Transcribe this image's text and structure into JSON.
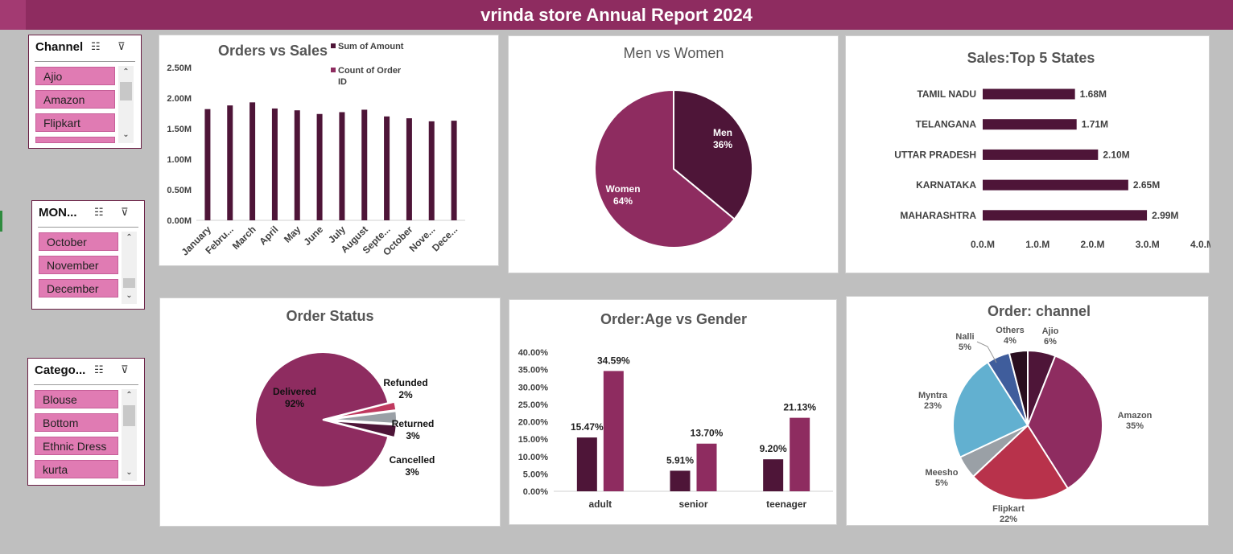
{
  "header": {
    "title": "vrinda store Annual Report 2024"
  },
  "slicers": [
    {
      "title": "Channel",
      "items": [
        "Ajio",
        "Amazon",
        "Flipkart"
      ]
    },
    {
      "title": "MON...",
      "items": [
        "October",
        "November",
        "December"
      ]
    },
    {
      "title": "Catego...",
      "items": [
        "Blouse",
        "Bottom",
        "Ethnic Dress",
        "kurta"
      ]
    }
  ],
  "chart_data": [
    {
      "id": "orders-vs-sales",
      "type": "bar",
      "title": "Orders vs Sales",
      "categories": [
        "January",
        "Febru...",
        "March",
        "April",
        "May",
        "June",
        "July",
        "August",
        "Septe...",
        "October",
        "Nove...",
        "Dece..."
      ],
      "series": [
        {
          "name": "Sum of Amount",
          "values": [
            1.82,
            1.88,
            1.93,
            1.83,
            1.8,
            1.74,
            1.77,
            1.81,
            1.7,
            1.67,
            1.62,
            1.63
          ]
        },
        {
          "name": "Count of Order ID",
          "values": [
            0,
            0,
            0,
            0,
            0,
            0,
            0,
            0,
            0,
            0,
            0,
            0
          ]
        }
      ],
      "yticks": [
        "0.00M",
        "0.50M",
        "1.00M",
        "1.50M",
        "2.00M",
        "2.50M"
      ],
      "ylim": [
        0,
        2.5
      ],
      "colors": [
        "#4e1538",
        "#8e2c60"
      ]
    },
    {
      "id": "men-vs-women",
      "type": "pie",
      "title": "Men vs Women",
      "labels": [
        "Men",
        "Women"
      ],
      "values": [
        36,
        64
      ],
      "pct_labels": [
        "36%",
        "64%"
      ],
      "colors": [
        "#4e1538",
        "#8e2c60"
      ]
    },
    {
      "id": "top-5-states",
      "type": "bar",
      "orientation": "horizontal",
      "title": "Sales:Top 5 States",
      "categories": [
        "TAMIL NADU",
        "TELANGANA",
        "UTTAR PRADESH",
        "KARNATAKA",
        "MAHARASHTRA"
      ],
      "values": [
        1.68,
        1.71,
        2.1,
        2.65,
        2.99
      ],
      "value_labels": [
        "1.68M",
        "1.71M",
        "2.10M",
        "2.65M",
        "2.99M"
      ],
      "xticks": [
        "0.0.M",
        "1.0.M",
        "2.0.M",
        "3.0.M",
        "4.0.M"
      ],
      "xlim": [
        0,
        4
      ],
      "color": "#4e1538"
    },
    {
      "id": "order-status",
      "type": "pie",
      "title": "Order Status",
      "labels": [
        "Delivered",
        "Refunded",
        "Returned",
        "Cancelled"
      ],
      "values": [
        92,
        2,
        3,
        3
      ],
      "pct_labels": [
        "92%",
        "2%",
        "3%",
        "3%"
      ],
      "colors": [
        "#8e2c60",
        "#c0395f",
        "#9aa0a6",
        "#4e1538"
      ]
    },
    {
      "id": "age-vs-gender",
      "type": "bar",
      "title": "Order:Age vs Gender",
      "categories": [
        "adult",
        "senior",
        "teenager"
      ],
      "series": [
        {
          "values": [
            15.47,
            5.91,
            9.2
          ],
          "labels": [
            "15.47%",
            "5.91%",
            "9.20%"
          ]
        },
        {
          "values": [
            34.59,
            13.7,
            21.13
          ],
          "labels": [
            "34.59%",
            "13.70%",
            "21.13%"
          ]
        }
      ],
      "yticks": [
        "0.00%",
        "5.00%",
        "10.00%",
        "15.00%",
        "20.00%",
        "25.00%",
        "30.00%",
        "35.00%",
        "40.00%"
      ],
      "ylim": [
        0,
        40
      ],
      "colors": [
        "#4e1538",
        "#8e2c60"
      ]
    },
    {
      "id": "order-channel",
      "type": "pie",
      "title": "Order: channel",
      "labels": [
        "Ajio",
        "Amazon",
        "Flipkart",
        "Meesho",
        "Myntra",
        "Nalli",
        "Others"
      ],
      "values": [
        6,
        35,
        22,
        5,
        23,
        5,
        4
      ],
      "pct_labels": [
        "6%",
        "35%",
        "22%",
        "5%",
        "23%",
        "5%",
        "4%"
      ],
      "colors": [
        "#4e1538",
        "#8e2c60",
        "#b8324b",
        "#9aa0a6",
        "#62b0d0",
        "#3f5d9c",
        "#2a0e1f"
      ]
    }
  ]
}
